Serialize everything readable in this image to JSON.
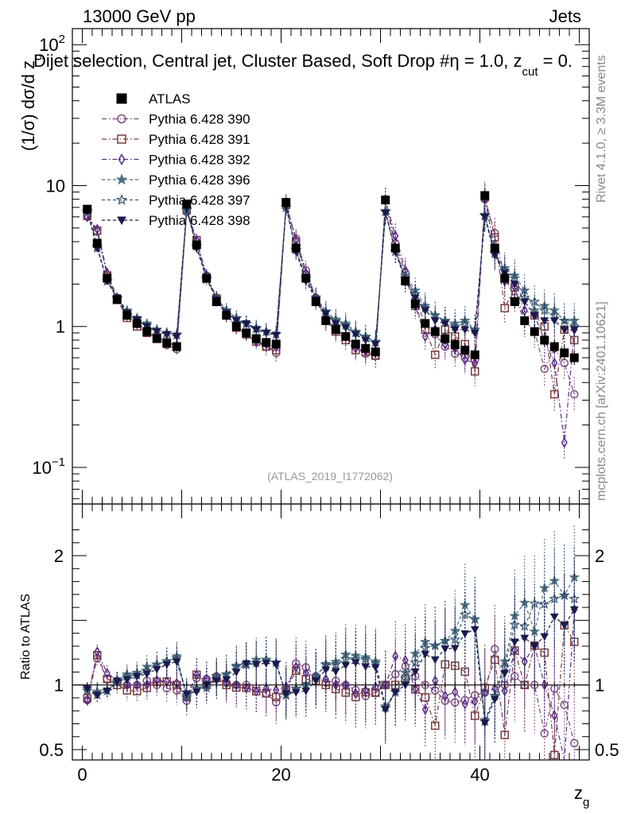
{
  "header": {
    "left": "13000 GeV pp",
    "right": "Jets"
  },
  "title": {
    "main": "Dijet selection, Central jet, Cluster Based, Soft Drop #",
    "eta": "η = 1.0, z",
    "sub": "cut",
    "tail": " = 0."
  },
  "side": {
    "rivet": "Rivet 4.1.0, ≥ 3.3M events",
    "mcplots": "mcplots.cern.ch [arXiv:2401.10621]"
  },
  "analysis_label": "(ATLAS_2019_I1772062)",
  "ratio_ylabel": "Ratio to ATLAS",
  "ylabel_main": {
    "prefix": "(1/σ) dσ/d z",
    "sub": "g"
  },
  "xlabel": {
    "main": "z",
    "sub": "g"
  },
  "main_ticks": {
    "y": [
      {
        "value": 0.1,
        "base": "10",
        "exp": "−1"
      },
      {
        "value": 1,
        "base": "1",
        "exp": ""
      },
      {
        "value": 10,
        "base": "10",
        "exp": ""
      },
      {
        "value": 100,
        "base": "10",
        "exp": "2"
      }
    ]
  },
  "ratio_ticks": [
    {
      "value": 0.5,
      "label": "0.5"
    },
    {
      "value": 1,
      "label": "1"
    },
    {
      "value": 2,
      "label": "2"
    }
  ],
  "x_ticks": [
    {
      "value": 0,
      "label": "0"
    },
    {
      "value": 20,
      "label": "20"
    },
    {
      "value": 40,
      "label": "40"
    }
  ],
  "colors": {
    "atlas": "#000000",
    "p390": "#7e4a7e",
    "p391": "#7a3c3c",
    "p392": "#5a2a8a",
    "p396": "#4e7080",
    "p397": "#355a70",
    "p398": "#1a1a4e"
  },
  "chart_data": {
    "type": "scatter",
    "x": [
      0.5,
      1.5,
      2.5,
      3.5,
      4.5,
      5.5,
      6.5,
      7.5,
      8.5,
      9.5,
      10.5,
      11.5,
      12.5,
      13.5,
      14.5,
      15.5,
      16.5,
      17.5,
      18.5,
      19.5,
      20.5,
      21.5,
      22.5,
      23.5,
      24.5,
      25.5,
      26.5,
      27.5,
      28.5,
      29.5,
      30.5,
      31.5,
      32.5,
      33.5,
      34.5,
      35.5,
      36.5,
      37.5,
      38.5,
      39.5,
      40.5,
      41.5,
      42.5,
      43.5,
      44.5,
      45.5,
      46.5,
      47.5,
      48.5,
      49.5
    ],
    "xlim": [
      -1,
      51
    ],
    "ylim": [
      0.055,
      130
    ],
    "ratio_ylim": [
      0.42,
      2.4
    ],
    "yscale": "log",
    "legend": [
      {
        "key": "atlas",
        "label": "ATLAS",
        "marker": "square-filled",
        "line": "none"
      },
      {
        "key": "p390",
        "label": "Pythia 6.428 390",
        "marker": "circle-open",
        "line": "dashdot"
      },
      {
        "key": "p391",
        "label": "Pythia 6.428 391",
        "marker": "square-open",
        "line": "dashdot"
      },
      {
        "key": "p392",
        "label": "Pythia 6.428 392",
        "marker": "diamond-open",
        "line": "dashdot"
      },
      {
        "key": "p396",
        "label": "Pythia 6.428 396",
        "marker": "star-filled",
        "line": "dashed"
      },
      {
        "key": "p397",
        "label": "Pythia 6.428 397",
        "marker": "star-open",
        "line": "dashed"
      },
      {
        "key": "p398",
        "label": "Pythia 6.428 398",
        "marker": "triangle-down-filled",
        "line": "dashed"
      }
    ],
    "series": [
      {
        "key": "atlas",
        "name": "ATLAS",
        "values": [
          6.8,
          3.9,
          2.2,
          1.55,
          1.2,
          1.05,
          0.92,
          0.82,
          0.76,
          0.72,
          7.4,
          3.8,
          2.2,
          1.5,
          1.2,
          1.0,
          0.9,
          0.82,
          0.77,
          0.75,
          7.6,
          3.6,
          2.2,
          1.5,
          1.1,
          0.95,
          0.85,
          0.75,
          0.7,
          0.66,
          7.9,
          3.6,
          2.1,
          1.45,
          1.05,
          0.92,
          0.82,
          0.74,
          0.68,
          0.63,
          8.5,
          3.6,
          2.2,
          1.5,
          1.1,
          0.92,
          0.8,
          0.72,
          0.65,
          0.6
        ]
      },
      {
        "key": "p390",
        "name": "Pythia 6.428 390",
        "values": [
          6.0,
          4.7,
          2.3,
          1.6,
          1.2,
          1.05,
          0.95,
          0.82,
          0.74,
          0.69,
          6.5,
          4.0,
          2.3,
          1.6,
          1.22,
          1.0,
          0.9,
          0.8,
          0.72,
          0.65,
          7.2,
          4.2,
          2.5,
          1.6,
          1.12,
          0.98,
          0.85,
          0.72,
          0.64,
          0.62,
          7.9,
          3.9,
          2.4,
          1.55,
          1.05,
          0.88,
          0.72,
          0.64,
          0.6,
          0.58,
          8.0,
          4.6,
          2.2,
          1.6,
          1.1,
          0.92,
          0.5,
          0.7,
          0.55,
          0.33
        ]
      },
      {
        "key": "p391",
        "name": "Pythia 6.428 391",
        "values": [
          6.1,
          4.8,
          2.3,
          1.55,
          1.15,
          1.0,
          0.9,
          0.84,
          0.78,
          0.72,
          6.7,
          4.1,
          2.2,
          1.58,
          1.2,
          0.98,
          0.88,
          0.78,
          0.72,
          0.68,
          7.3,
          4.0,
          2.3,
          1.55,
          1.1,
          0.92,
          0.8,
          0.68,
          0.66,
          0.62,
          7.9,
          3.6,
          2.2,
          1.4,
          0.95,
          0.63,
          0.95,
          0.85,
          0.75,
          0.48,
          8.3,
          4.3,
          1.35,
          1.9,
          1.1,
          1.2,
          1.0,
          0.33,
          0.95,
          0.8
        ]
      },
      {
        "key": "p392",
        "name": "Pythia 6.428 392",
        "values": [
          6.0,
          4.9,
          2.4,
          1.6,
          1.2,
          1.05,
          0.92,
          0.85,
          0.78,
          0.73,
          6.8,
          4.1,
          2.3,
          1.6,
          1.22,
          1.0,
          0.88,
          0.78,
          0.75,
          0.72,
          7.5,
          4.1,
          2.4,
          1.6,
          1.15,
          0.95,
          0.85,
          0.7,
          0.67,
          0.65,
          7.9,
          4.4,
          2.5,
          1.4,
          0.85,
          0.95,
          0.75,
          0.7,
          0.58,
          0.55,
          8.0,
          3.5,
          2.1,
          1.9,
          1.3,
          1.2,
          0.8,
          0.55,
          0.15,
          0.95
        ]
      },
      {
        "key": "p396",
        "name": "Pythia 6.428 396",
        "values": [
          6.6,
          3.7,
          2.1,
          1.6,
          1.3,
          1.15,
          1.05,
          0.95,
          0.9,
          0.88,
          6.8,
          3.7,
          2.15,
          1.6,
          1.3,
          1.15,
          1.05,
          0.98,
          0.92,
          0.88,
          7.0,
          3.5,
          2.2,
          1.6,
          1.28,
          1.12,
          1.05,
          0.92,
          0.85,
          0.78,
          6.6,
          3.4,
          2.3,
          1.8,
          1.4,
          1.2,
          1.1,
          1.05,
          1.1,
          0.95,
          6.2,
          3.3,
          2.6,
          2.3,
          1.8,
          1.3,
          1.4,
          1.3,
          1.1,
          1.1
        ]
      },
      {
        "key": "p397",
        "name": "Pythia 6.428 397",
        "values": [
          6.5,
          3.6,
          2.1,
          1.58,
          1.28,
          1.13,
          1.02,
          0.95,
          0.9,
          0.87,
          6.7,
          3.7,
          2.2,
          1.6,
          1.3,
          1.14,
          1.04,
          0.96,
          0.92,
          0.88,
          7.0,
          3.5,
          2.2,
          1.6,
          1.27,
          1.1,
          1.02,
          0.9,
          0.84,
          0.77,
          6.5,
          3.4,
          2.2,
          1.7,
          1.35,
          1.2,
          1.1,
          1.0,
          1.05,
          0.95,
          6.1,
          3.3,
          2.5,
          2.2,
          1.6,
          1.5,
          1.3,
          1.2,
          1.1,
          1.0
        ]
      },
      {
        "key": "p398",
        "name": "Pythia 6.428 398",
        "values": [
          6.6,
          3.6,
          2.1,
          1.6,
          1.25,
          1.12,
          1.0,
          0.92,
          0.88,
          0.85,
          6.9,
          3.6,
          2.2,
          1.55,
          1.25,
          1.1,
          1.05,
          0.95,
          0.9,
          0.87,
          7.1,
          3.4,
          2.1,
          1.55,
          1.23,
          1.05,
          0.98,
          0.88,
          0.8,
          0.75,
          6.4,
          3.4,
          2.1,
          1.6,
          1.3,
          1.1,
          1.05,
          0.95,
          0.95,
          0.9,
          6.0,
          3.2,
          2.4,
          2.0,
          1.5,
          1.2,
          1.1,
          1.1,
          0.95,
          0.95
        ]
      }
    ]
  }
}
